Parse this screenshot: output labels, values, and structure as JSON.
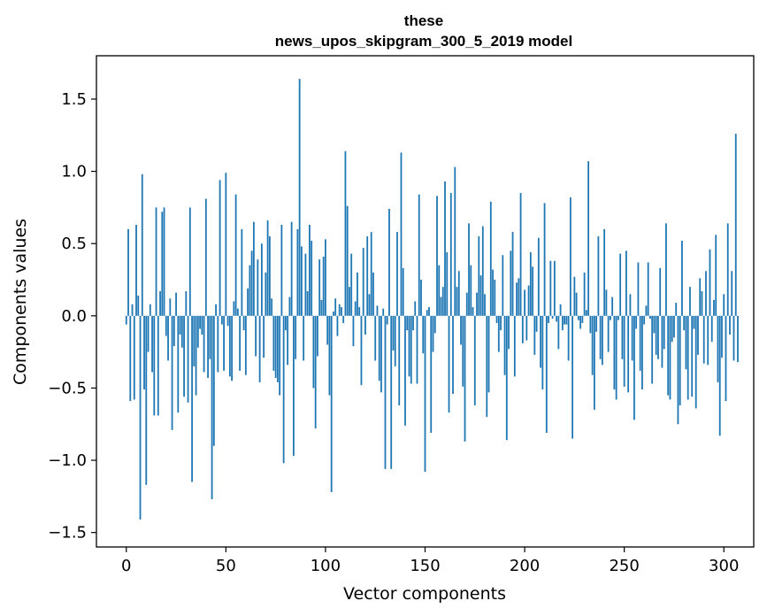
{
  "chart_data": {
    "type": "bar",
    "title_lines": [
      "these",
      "news_upos_skipgram_300_5_2019 model"
    ],
    "xlabel": "Vector components",
    "ylabel": "Components values",
    "xlim": [
      -15,
      315
    ],
    "ylim": [
      -1.6,
      1.8
    ],
    "xticks": [
      0,
      50,
      100,
      150,
      200,
      250,
      300
    ],
    "xtick_labels": [
      "0",
      "50",
      "100",
      "150",
      "200",
      "250",
      "300"
    ],
    "yticks": [
      -1.5,
      -1.0,
      -0.5,
      0.0,
      0.5,
      1.0,
      1.5
    ],
    "ytick_labels": [
      "−1.5",
      "−1.0",
      "−0.5",
      "0.0",
      "0.5",
      "1.0",
      "1.5"
    ],
    "bar_color": "#1f77b4",
    "grid": false,
    "values": [
      -0.06,
      0.6,
      -0.59,
      0.08,
      -0.58,
      0.63,
      0.14,
      -1.41,
      0.98,
      -0.51,
      -1.17,
      -0.25,
      0.08,
      -0.39,
      -0.69,
      0.75,
      -0.69,
      0.17,
      0.72,
      0.75,
      -0.14,
      -0.31,
      0.12,
      -0.79,
      -0.21,
      0.16,
      -0.67,
      -0.13,
      -0.22,
      -0.56,
      0.17,
      -0.6,
      0.75,
      -1.15,
      -0.35,
      -0.55,
      -0.22,
      -0.09,
      -0.13,
      -0.39,
      0.81,
      -0.43,
      -0.3,
      -1.27,
      -0.9,
      0.08,
      -0.39,
      0.94,
      -0.06,
      -0.38,
      0.99,
      -0.07,
      -0.42,
      -0.45,
      0.1,
      0.84,
      0.05,
      -0.38,
      0.6,
      -0.1,
      -0.41,
      0.19,
      0.35,
      0.45,
      0.65,
      -0.28,
      0.39,
      -0.46,
      0.5,
      -0.29,
      0.3,
      0.66,
      0.55,
      0.12,
      -0.38,
      -0.43,
      -0.46,
      -0.55,
      0.63,
      -1.02,
      -0.1,
      -0.34,
      0.13,
      0.65,
      -0.97,
      -0.3,
      0.6,
      1.64,
      0.48,
      -0.31,
      0.43,
      0.17,
      0.63,
      0.52,
      -0.5,
      -0.78,
      -0.28,
      0.39,
      0.11,
      0.41,
      0.53,
      -0.2,
      -0.55,
      -1.22,
      0.03,
      0.12,
      -0.14,
      0.08,
      0.06,
      -0.05,
      1.14,
      0.76,
      0.2,
      0.43,
      -0.21,
      0.1,
      0.3,
      0.06,
      -0.48,
      0.47,
      -0.13,
      0.55,
      0.15,
      0.58,
      0.3,
      -0.31,
      0.07,
      -0.45,
      -0.53,
      0.05,
      -1.06,
      -0.06,
      0.74,
      -1.06,
      -0.24,
      -0.35,
      0.58,
      -0.62,
      1.13,
      0.33,
      -0.76,
      -0.1,
      -0.42,
      -0.47,
      -0.1,
      0.1,
      -0.47,
      0.84,
      0.25,
      -0.26,
      -1.08,
      0.04,
      0.06,
      -0.81,
      -0.25,
      -0.12,
      0.83,
      0.35,
      0.13,
      0.2,
      0.93,
      0.44,
      -0.67,
      0.85,
      -0.54,
      1.03,
      0.2,
      0.31,
      -0.2,
      -0.49,
      -0.87,
      0.16,
      0.64,
      0.35,
      0.06,
      -0.62,
      0.16,
      0.55,
      0.28,
      0.62,
      0.15,
      -0.7,
      -0.53,
      0.79,
      0.32,
      0.25,
      -0.05,
      -0.25,
      -0.1,
      0.42,
      -0.41,
      -0.86,
      -0.23,
      0.45,
      0.58,
      -0.42,
      0.23,
      0.26,
      0.85,
      -0.19,
      0.18,
      -0.17,
      0.21,
      0.44,
      0.34,
      -0.27,
      -0.11,
      0.54,
      -0.36,
      -0.51,
      0.78,
      -0.81,
      -0.05,
      0.38,
      -0.02,
      0.38,
      -0.04,
      -0.23,
      0.08,
      -0.1,
      -0.06,
      -0.06,
      -0.31,
      0.82,
      -0.85,
      0.27,
      0.16,
      -0.03,
      -0.09,
      -0.05,
      0.3,
      0.04,
      1.07,
      -0.12,
      -0.41,
      -0.65,
      -0.11,
      0.55,
      -0.3,
      -0.34,
      0.6,
      0.18,
      -0.25,
      -0.03,
      0.13,
      -0.51,
      -0.58,
      -0.03,
      0.43,
      -0.3,
      -0.49,
      0.45,
      -0.53,
      0.15,
      -0.31,
      -0.72,
      -0.09,
      0.37,
      -0.38,
      -0.51,
      -0.06,
      0.07,
      0.37,
      -0.02,
      -0.47,
      -0.12,
      -0.27,
      -0.3,
      0.33,
      -0.36,
      -0.23,
      0.64,
      -0.55,
      -0.58,
      -0.18,
      -0.15,
      0.09,
      -0.75,
      -0.62,
      0.52,
      -0.1,
      -0.37,
      -0.58,
      0.2,
      -0.56,
      -0.09,
      -0.64,
      -0.27,
      0.26,
      0.17,
      -0.33,
      0.31,
      -0.34,
      0.46,
      -0.18,
      0.11,
      0.56,
      -0.46,
      -0.83,
      -0.29,
      0.15,
      -0.59,
      0.64,
      -0.13,
      0.31,
      -0.31,
      1.26,
      -0.32
    ]
  }
}
